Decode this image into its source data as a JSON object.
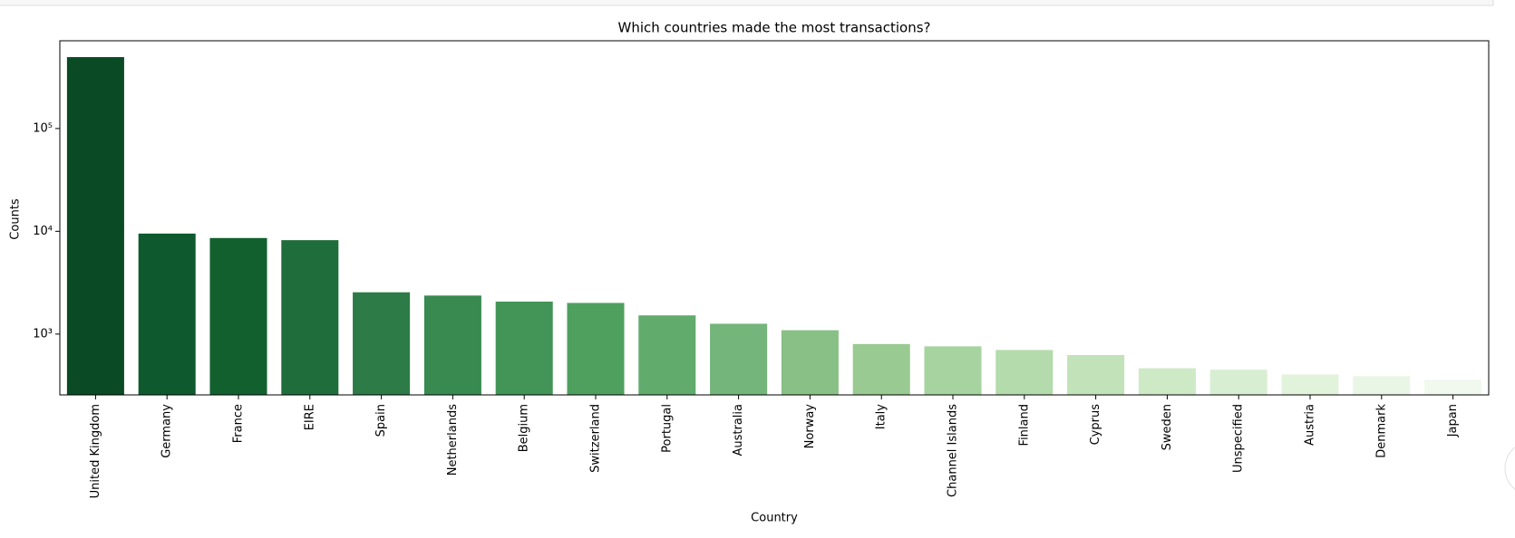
{
  "chart_data": {
    "type": "bar",
    "title": "Which countries made the most transactions?",
    "xlabel": "Country",
    "ylabel": "Counts",
    "yscale": "log",
    "categories": [
      "United Kingdom",
      "Germany",
      "France",
      "EIRE",
      "Spain",
      "Netherlands",
      "Belgium",
      "Switzerland",
      "Portugal",
      "Australia",
      "Norway",
      "Italy",
      "Channel Islands",
      "Finland",
      "Cyprus",
      "Sweden",
      "Unspecified",
      "Austria",
      "Denmark",
      "Japan"
    ],
    "values": [
      495000,
      9500,
      8600,
      8200,
      2550,
      2370,
      2070,
      2010,
      1520,
      1260,
      1090,
      800,
      760,
      700,
      625,
      465,
      450,
      405,
      390,
      360
    ],
    "colors": [
      "#0a4a24",
      "#0e5a2e",
      "#13602f",
      "#1f6d3b",
      "#2d7b46",
      "#388a51",
      "#439557",
      "#4fa05f",
      "#61ab6c",
      "#73b57a",
      "#88c085",
      "#99ca91",
      "#a6d39f",
      "#b4dbac",
      "#c2e3b9",
      "#cee9c6",
      "#d8eed2",
      "#e2f3dc",
      "#eaf6e5",
      "#f1f9ee"
    ],
    "ylim": [
      256,
      714000
    ],
    "yticks": [
      {
        "value": 1000,
        "label": "10³"
      },
      {
        "value": 10000,
        "label": "10⁴"
      },
      {
        "value": 100000,
        "label": "10⁵"
      }
    ],
    "grid": false
  }
}
